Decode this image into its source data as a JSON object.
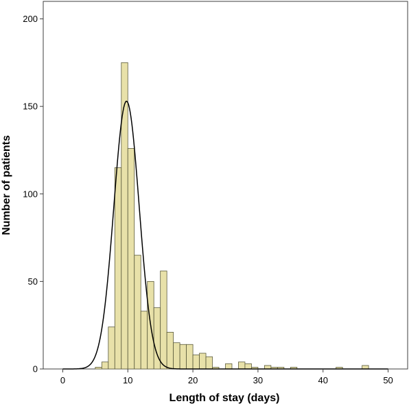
{
  "chart_data": {
    "type": "bar",
    "title": "",
    "xlabel": "Length of stay (days)",
    "ylabel": "Number of patients",
    "xlim": [
      -3,
      53
    ],
    "ylim": [
      0,
      210
    ],
    "xticks": [
      0,
      10,
      20,
      30,
      40,
      50
    ],
    "yticks": [
      0,
      50,
      100,
      150,
      200
    ],
    "bin_width": 1,
    "bar_color": "#e8e1a9",
    "bar_edge_color": "#5a5a3c",
    "curve_color": "#000000",
    "grid": false,
    "bins": [
      {
        "start": 5,
        "count": 1
      },
      {
        "start": 6,
        "count": 4
      },
      {
        "start": 7,
        "count": 24
      },
      {
        "start": 8,
        "count": 115
      },
      {
        "start": 9,
        "count": 175
      },
      {
        "start": 10,
        "count": 126
      },
      {
        "start": 11,
        "count": 65
      },
      {
        "start": 12,
        "count": 33
      },
      {
        "start": 13,
        "count": 50
      },
      {
        "start": 14,
        "count": 35
      },
      {
        "start": 15,
        "count": 56
      },
      {
        "start": 16,
        "count": 21
      },
      {
        "start": 17,
        "count": 15
      },
      {
        "start": 18,
        "count": 14
      },
      {
        "start": 19,
        "count": 14
      },
      {
        "start": 20,
        "count": 8
      },
      {
        "start": 21,
        "count": 9
      },
      {
        "start": 22,
        "count": 7
      },
      {
        "start": 23,
        "count": 1
      },
      {
        "start": 25,
        "count": 3
      },
      {
        "start": 27,
        "count": 4
      },
      {
        "start": 28,
        "count": 3
      },
      {
        "start": 29,
        "count": 1
      },
      {
        "start": 31,
        "count": 2
      },
      {
        "start": 32,
        "count": 1
      },
      {
        "start": 33,
        "count": 1
      },
      {
        "start": 35,
        "count": 1
      },
      {
        "start": 42,
        "count": 1
      },
      {
        "start": 46,
        "count": 2
      }
    ],
    "normal_curve": {
      "mean": 9.8,
      "sd": 1.95,
      "peak": 153
    }
  }
}
